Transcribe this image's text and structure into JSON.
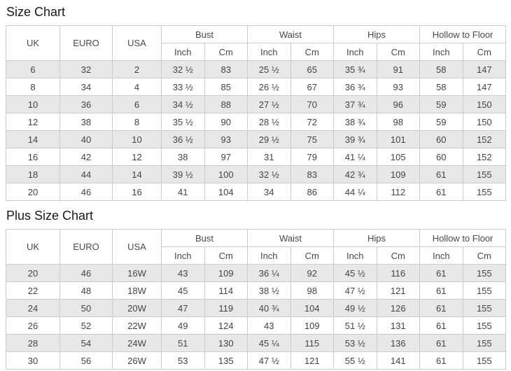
{
  "colors": {
    "background": "#ffffff",
    "stripe_row": "#e8e8e8",
    "table_border": "#cccccc",
    "table_text": "#444444",
    "title_text": "#1a1a1a"
  },
  "chart_data": [
    {
      "type": "table",
      "title": "Size Chart",
      "simple_columns": [
        "UK",
        "EURO",
        "USA"
      ],
      "column_groups": [
        {
          "label": "Bust",
          "subs": [
            "Inch",
            "Cm"
          ]
        },
        {
          "label": "Waist",
          "subs": [
            "Inch",
            "Cm"
          ]
        },
        {
          "label": "Hips",
          "subs": [
            "Inch",
            "Cm"
          ]
        },
        {
          "label": "Hollow to Floor",
          "subs": [
            "Inch",
            "Cm"
          ]
        }
      ],
      "rows": [
        [
          "6",
          "32",
          "2",
          "32 ½",
          "83",
          "25 ½",
          "65",
          "35 ¾",
          "91",
          "58",
          "147"
        ],
        [
          "8",
          "34",
          "4",
          "33 ½",
          "85",
          "26 ½",
          "67",
          "36 ¾",
          "93",
          "58",
          "147"
        ],
        [
          "10",
          "36",
          "6",
          "34 ½",
          "88",
          "27 ½",
          "70",
          "37 ¾",
          "96",
          "59",
          "150"
        ],
        [
          "12",
          "38",
          "8",
          "35 ½",
          "90",
          "28 ½",
          "72",
          "38 ¾",
          "98",
          "59",
          "150"
        ],
        [
          "14",
          "40",
          "10",
          "36 ½",
          "93",
          "29 ½",
          "75",
          "39 ¾",
          "101",
          "60",
          "152"
        ],
        [
          "16",
          "42",
          "12",
          "38",
          "97",
          "31",
          "79",
          "41 ¼",
          "105",
          "60",
          "152"
        ],
        [
          "18",
          "44",
          "14",
          "39 ½",
          "100",
          "32 ½",
          "83",
          "42 ¾",
          "109",
          "61",
          "155"
        ],
        [
          "20",
          "46",
          "16",
          "41",
          "104",
          "34",
          "86",
          "44 ¼",
          "112",
          "61",
          "155"
        ]
      ]
    },
    {
      "type": "table",
      "title": "Plus Size Chart",
      "simple_columns": [
        "UK",
        "EURO",
        "USA"
      ],
      "column_groups": [
        {
          "label": "Bust",
          "subs": [
            "Inch",
            "Cm"
          ]
        },
        {
          "label": "Waist",
          "subs": [
            "Inch",
            "Cm"
          ]
        },
        {
          "label": "Hips",
          "subs": [
            "Inch",
            "Cm"
          ]
        },
        {
          "label": "Hollow to Floor",
          "subs": [
            "Inch",
            "Cm"
          ]
        }
      ],
      "rows": [
        [
          "20",
          "46",
          "16W",
          "43",
          "109",
          "36 ¼",
          "92",
          "45 ½",
          "116",
          "61",
          "155"
        ],
        [
          "22",
          "48",
          "18W",
          "45",
          "114",
          "38 ½",
          "98",
          "47 ½",
          "121",
          "61",
          "155"
        ],
        [
          "24",
          "50",
          "20W",
          "47",
          "119",
          "40 ¾",
          "104",
          "49 ½",
          "126",
          "61",
          "155"
        ],
        [
          "26",
          "52",
          "22W",
          "49",
          "124",
          "43",
          "109",
          "51 ½",
          "131",
          "61",
          "155"
        ],
        [
          "28",
          "54",
          "24W",
          "51",
          "130",
          "45 ¼",
          "115",
          "53 ½",
          "136",
          "61",
          "155"
        ],
        [
          "30",
          "56",
          "26W",
          "53",
          "135",
          "47 ½",
          "121",
          "55 ½",
          "141",
          "61",
          "155"
        ]
      ]
    }
  ]
}
